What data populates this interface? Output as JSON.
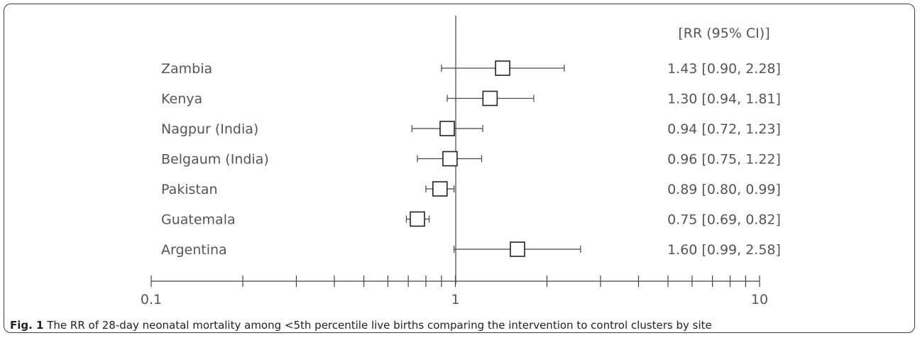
{
  "chart_data": {
    "type": "forest",
    "x_scale": "log",
    "xlim": [
      0.1,
      10
    ],
    "x_tick_labels": [
      "0.1",
      "1",
      "10"
    ],
    "reference_line": 1,
    "column_header": "[RR (95% CI)]",
    "rows": [
      {
        "site": "Zambia",
        "rr": 1.43,
        "lower": 0.9,
        "upper": 2.28,
        "label": "1.43 [0.90, 2.28]"
      },
      {
        "site": "Kenya",
        "rr": 1.3,
        "lower": 0.94,
        "upper": 1.81,
        "label": "1.30 [0.94, 1.81]"
      },
      {
        "site": "Nagpur (India)",
        "rr": 0.94,
        "lower": 0.72,
        "upper": 1.23,
        "label": "0.94 [0.72, 1.23]"
      },
      {
        "site": "Belgaum (India)",
        "rr": 0.96,
        "lower": 0.75,
        "upper": 1.22,
        "label": "0.96 [0.75, 1.22]"
      },
      {
        "site": "Pakistan",
        "rr": 0.89,
        "lower": 0.8,
        "upper": 0.99,
        "label": "0.89 [0.80, 0.99]"
      },
      {
        "site": "Guatemala",
        "rr": 0.75,
        "lower": 0.69,
        "upper": 0.82,
        "label": "0.75 [0.69, 0.82]"
      },
      {
        "site": "Argentina",
        "rr": 1.6,
        "lower": 0.99,
        "upper": 2.58,
        "label": "1.60 [0.99, 2.58]"
      }
    ],
    "colors": {
      "line": "#444444",
      "text": "#555555",
      "marker_fill": "#ffffff",
      "marker_stroke": "#222222"
    }
  },
  "caption": {
    "label": "Fig. 1",
    "text": " The RR of 28-day neonatal mortality among <5th percentile live births comparing the intervention to control clusters by site"
  }
}
